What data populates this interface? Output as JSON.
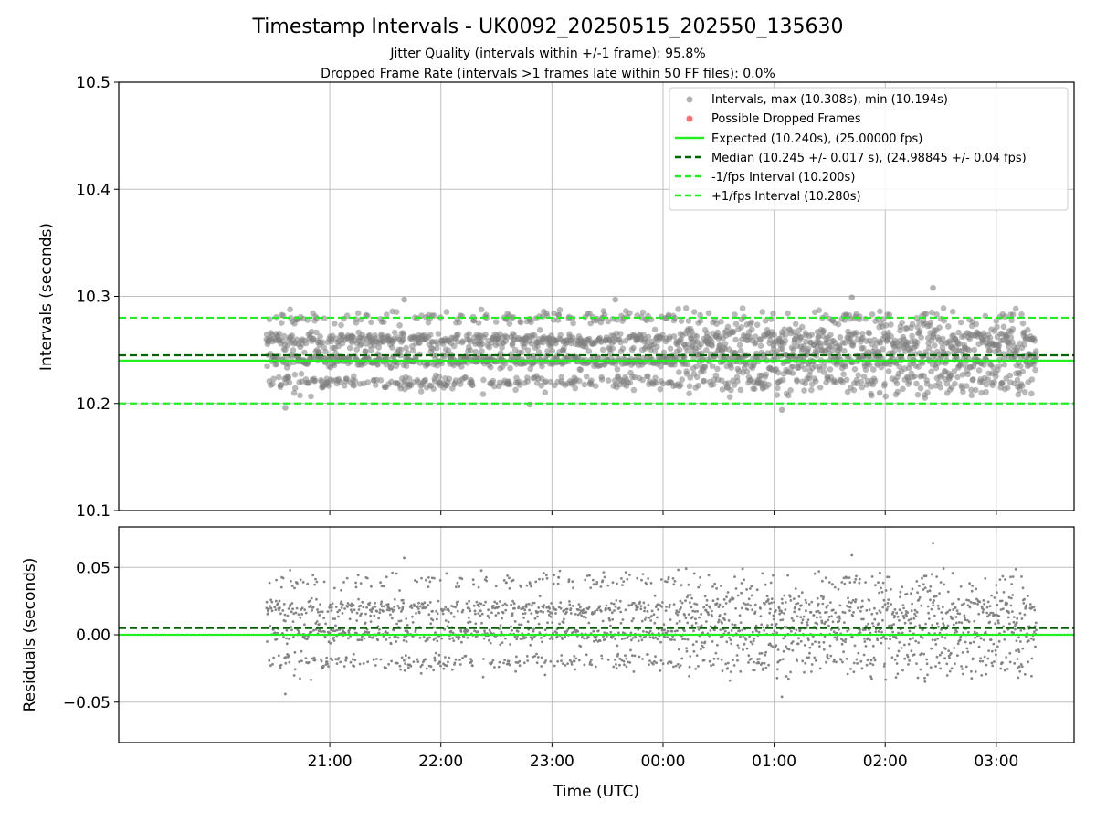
{
  "title": "Timestamp Intervals - UK0092_20250515_202550_135630",
  "subtitle_1": "Jitter Quality (intervals within +/-1 frame): 95.8%",
  "subtitle_2": "Dropped Frame Rate (intervals >1 frames late within 50 FF files): 0.0%",
  "colors": {
    "points": "#808080",
    "dropped": "#ff4040",
    "expected": "#22ee22",
    "median": "#006400",
    "limits": "#22ee22"
  },
  "chart_data": [
    {
      "type": "scatter",
      "panel": "top",
      "ylabel": "Intervals (seconds)",
      "ylim": [
        10.1,
        10.5
      ],
      "yticks": [
        10.1,
        10.2,
        10.3,
        10.4,
        10.5
      ],
      "ytick_labels": [
        "10.1",
        "10.2",
        "10.3",
        "10.4",
        "10.5"
      ],
      "xlim_hours": [
        19.1,
        27.7
      ],
      "xticks_hours": [
        21,
        22,
        23,
        24,
        25,
        26,
        27
      ],
      "grid": true,
      "legend_placement": "top-right",
      "legend": [
        "Intervals, max (10.308s), min (10.194s)",
        "Possible Dropped Frames",
        "Expected (10.240s), (25.00000 fps)",
        "Median (10.245 +/- 0.017 s), (24.98845 +/- 0.04 fps)",
        "-1/fps Interval (10.200s)",
        "+1/fps Interval (10.280s)"
      ],
      "data_range_hours": [
        20.43,
        27.36
      ],
      "levels": [
        10.22,
        10.24,
        10.26,
        10.28
      ],
      "outliers": [
        {
          "x": 21.67,
          "y": 10.297
        },
        {
          "x": 23.57,
          "y": 10.297
        },
        {
          "x": 25.7,
          "y": 10.299
        },
        {
          "x": 26.43,
          "y": 10.308
        },
        {
          "x": 25.07,
          "y": 10.194
        },
        {
          "x": 20.6,
          "y": 10.196
        },
        {
          "x": 22.8,
          "y": 10.199
        },
        {
          "x": 25.95,
          "y": 10.21
        }
      ],
      "lines": {
        "expected": 10.24,
        "median": 10.245,
        "minus_1fps": 10.2,
        "plus_1fps": 10.28
      }
    },
    {
      "type": "scatter",
      "panel": "bottom",
      "xlabel": "Time (UTC)",
      "ylabel": "Residuals (seconds)",
      "ylim": [
        -0.08,
        0.08
      ],
      "yticks": [
        -0.05,
        0.0,
        0.05
      ],
      "ytick_labels": [
        "−0.05",
        "0.00",
        "0.05"
      ],
      "xticks_hours": [
        21,
        22,
        23,
        24,
        25,
        26,
        27
      ],
      "xtick_labels": [
        "21:00",
        "22:00",
        "23:00",
        "00:00",
        "01:00",
        "02:00",
        "03:00"
      ],
      "grid": true,
      "outliers": [
        {
          "x": 26.43,
          "y": 0.068
        },
        {
          "x": 21.67,
          "y": 0.057
        },
        {
          "x": 25.7,
          "y": 0.059
        },
        {
          "x": 25.07,
          "y": -0.046
        },
        {
          "x": 20.6,
          "y": -0.044
        }
      ],
      "lines": {
        "expected": 0.0,
        "median": 0.005
      }
    }
  ]
}
